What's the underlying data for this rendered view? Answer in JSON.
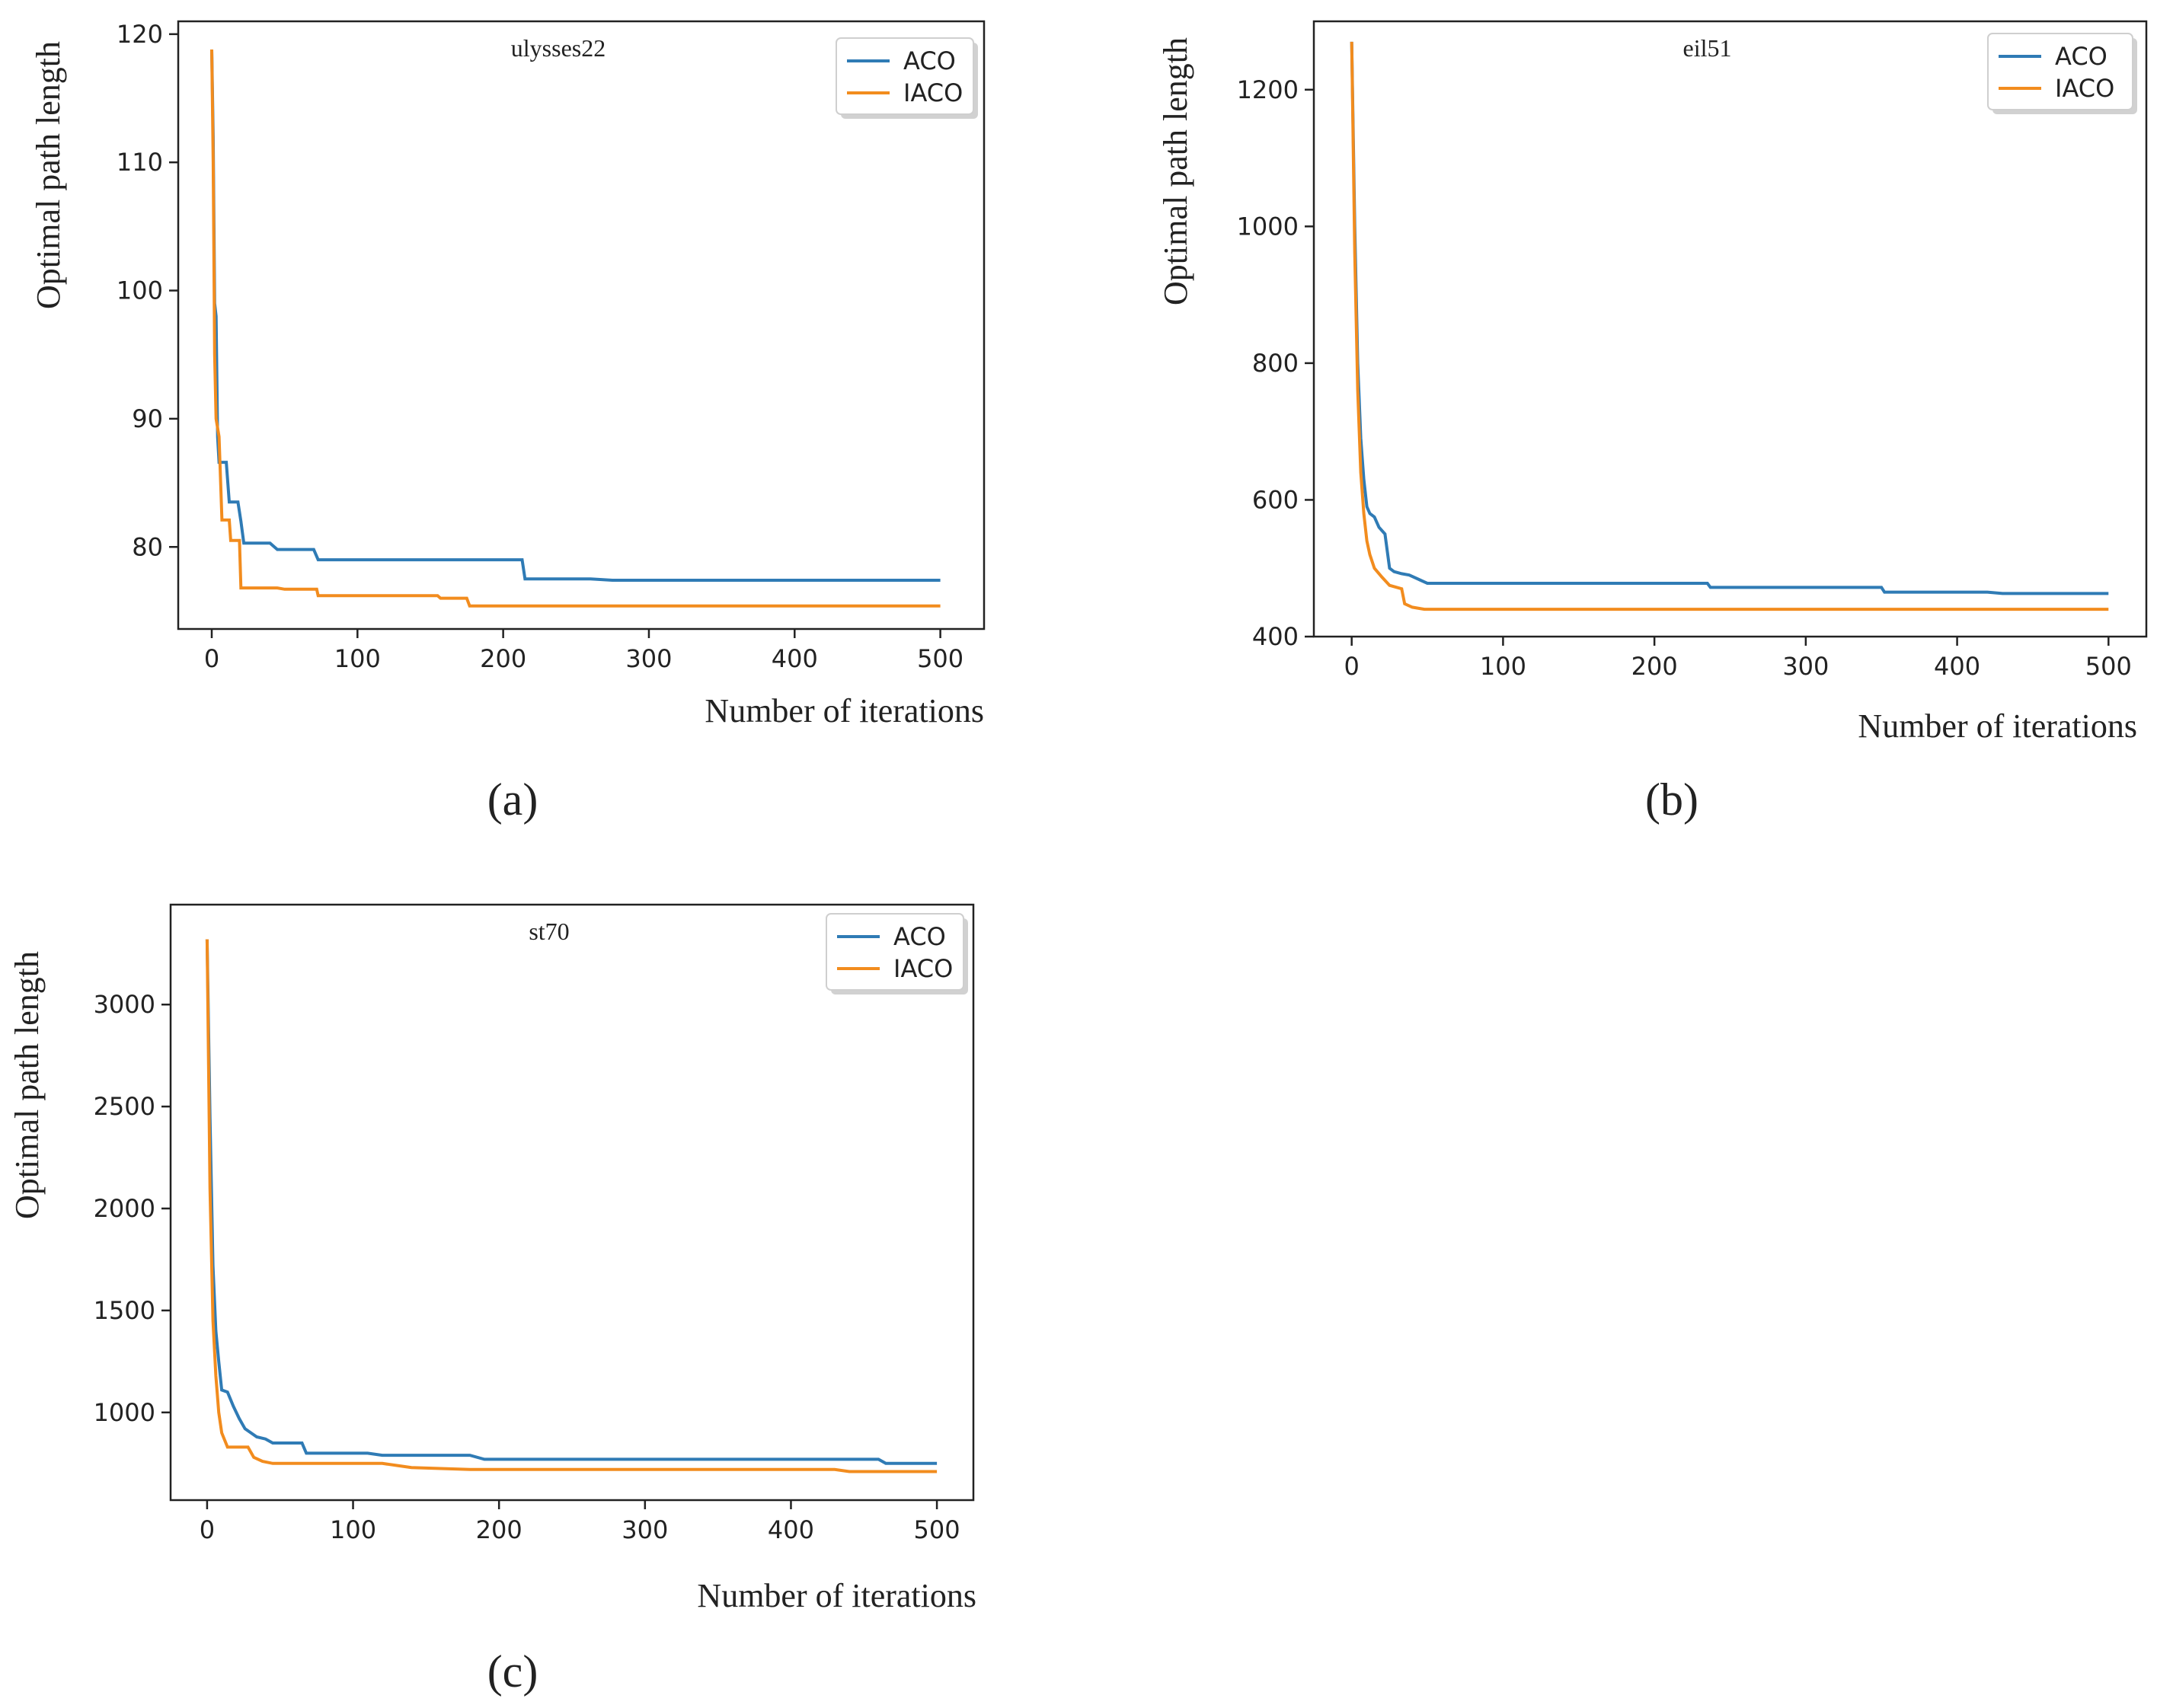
{
  "figure": {
    "labels": [
      "(a)",
      "(b)",
      "(c)"
    ],
    "colors": {
      "ACO": "#2f7bb5",
      "IACO": "#f28c1e"
    }
  },
  "chart_data": [
    {
      "type": "line",
      "title": "ulysses22",
      "xlabel": "Number of iterations",
      "ylabel": "Optimal path length",
      "xlim": [
        -23,
        530
      ],
      "ylim": [
        73.6,
        121
      ],
      "xticks": [
        0,
        100,
        200,
        300,
        400,
        500
      ],
      "yticks": [
        80,
        90,
        100,
        110,
        120
      ],
      "legend": [
        "ACO",
        "IACO"
      ],
      "legend_position": "top-right",
      "caption": "(a)",
      "series": [
        {
          "name": "ACO",
          "points": [
            [
              0,
              118.8
            ],
            [
              1,
              112
            ],
            [
              2,
              99
            ],
            [
              3,
              98
            ],
            [
              4,
              88.6
            ],
            [
              5,
              86.6
            ],
            [
              10,
              86.6
            ],
            [
              12,
              83.5
            ],
            [
              18,
              83.5
            ],
            [
              20,
              82
            ],
            [
              22,
              80.3
            ],
            [
              38,
              80.3
            ],
            [
              40,
              80.3
            ],
            [
              45,
              79.8
            ],
            [
              70,
              79.8
            ],
            [
              73,
              79
            ],
            [
              100,
              79
            ],
            [
              200,
              79
            ],
            [
              213,
              79
            ],
            [
              215,
              77.5
            ],
            [
              260,
              77.5
            ],
            [
              275,
              77.4
            ],
            [
              500,
              77.4
            ]
          ]
        },
        {
          "name": "IACO",
          "points": [
            [
              0,
              118.8
            ],
            [
              1,
              110
            ],
            [
              2,
              95
            ],
            [
              3,
              90
            ],
            [
              5,
              88.6
            ],
            [
              7,
              82.1
            ],
            [
              12,
              82.1
            ],
            [
              13,
              80.5
            ],
            [
              19,
              80.5
            ],
            [
              20,
              76.8
            ],
            [
              45,
              76.8
            ],
            [
              50,
              76.7
            ],
            [
              72,
              76.7
            ],
            [
              73,
              76.2
            ],
            [
              100,
              76.2
            ],
            [
              155,
              76.2
            ],
            [
              157,
              76.0
            ],
            [
              175,
              76.0
            ],
            [
              177,
              75.4
            ],
            [
              500,
              75.4
            ]
          ]
        }
      ]
    },
    {
      "type": "line",
      "title": "eil51",
      "xlabel": "Number of iterations",
      "ylabel": "Optimal path length",
      "xlim": [
        -25,
        525
      ],
      "ylim": [
        400,
        1300
      ],
      "xticks": [
        0,
        100,
        200,
        300,
        400,
        500
      ],
      "yticks": [
        400,
        600,
        800,
        1000,
        1200
      ],
      "legend": [
        "ACO",
        "IACO"
      ],
      "legend_position": "top-right",
      "caption": "(b)",
      "series": [
        {
          "name": "ACO",
          "points": [
            [
              0,
              1270
            ],
            [
              2,
              1000
            ],
            [
              4,
              800
            ],
            [
              6,
              690
            ],
            [
              8,
              630
            ],
            [
              10,
              590
            ],
            [
              12,
              580
            ],
            [
              15,
              575
            ],
            [
              18,
              560
            ],
            [
              22,
              550
            ],
            [
              25,
              500
            ],
            [
              28,
              495
            ],
            [
              33,
              492
            ],
            [
              38,
              490
            ],
            [
              45,
              483
            ],
            [
              50,
              478
            ],
            [
              100,
              478
            ],
            [
              235,
              478
            ],
            [
              237,
              472
            ],
            [
              260,
              472
            ],
            [
              350,
              472
            ],
            [
              352,
              465
            ],
            [
              420,
              465
            ],
            [
              430,
              463
            ],
            [
              500,
              463
            ]
          ]
        },
        {
          "name": "IACO",
          "points": [
            [
              0,
              1270
            ],
            [
              2,
              960
            ],
            [
              4,
              760
            ],
            [
              6,
              640
            ],
            [
              8,
              580
            ],
            [
              10,
              540
            ],
            [
              12,
              520
            ],
            [
              15,
              500
            ],
            [
              20,
              487
            ],
            [
              25,
              475
            ],
            [
              33,
              470
            ],
            [
              35,
              448
            ],
            [
              40,
              443
            ],
            [
              48,
              440
            ],
            [
              500,
              440
            ]
          ]
        }
      ]
    },
    {
      "type": "line",
      "title": "st70",
      "xlabel": "Number of iterations",
      "ylabel": "Optimal path length",
      "xlim": [
        -25,
        525
      ],
      "ylim": [
        570,
        3490
      ],
      "xticks": [
        0,
        100,
        200,
        300,
        400,
        500
      ],
      "yticks": [
        1000,
        1500,
        2000,
        2500,
        3000
      ],
      "legend": [
        "ACO",
        "IACO"
      ],
      "legend_position": "top-right",
      "caption": "(c)",
      "series": [
        {
          "name": "ACO",
          "points": [
            [
              0,
              3320
            ],
            [
              2,
              2450
            ],
            [
              4,
              1720
            ],
            [
              6,
              1400
            ],
            [
              8,
              1250
            ],
            [
              10,
              1110
            ],
            [
              14,
              1100
            ],
            [
              18,
              1030
            ],
            [
              22,
              970
            ],
            [
              26,
              920
            ],
            [
              30,
              900
            ],
            [
              34,
              880
            ],
            [
              40,
              870
            ],
            [
              45,
              850
            ],
            [
              65,
              850
            ],
            [
              68,
              800
            ],
            [
              110,
              800
            ],
            [
              120,
              790
            ],
            [
              180,
              790
            ],
            [
              190,
              770
            ],
            [
              460,
              770
            ],
            [
              465,
              750
            ],
            [
              500,
              750
            ]
          ]
        },
        {
          "name": "IACO",
          "points": [
            [
              0,
              3320
            ],
            [
              2,
              2100
            ],
            [
              4,
              1450
            ],
            [
              6,
              1180
            ],
            [
              8,
              1000
            ],
            [
              10,
              900
            ],
            [
              14,
              830
            ],
            [
              28,
              830
            ],
            [
              32,
              780
            ],
            [
              38,
              760
            ],
            [
              45,
              750
            ],
            [
              120,
              750
            ],
            [
              130,
              740
            ],
            [
              140,
              730
            ],
            [
              180,
              720
            ],
            [
              200,
              720
            ],
            [
              430,
              720
            ],
            [
              440,
              710
            ],
            [
              500,
              710
            ]
          ]
        }
      ]
    }
  ]
}
